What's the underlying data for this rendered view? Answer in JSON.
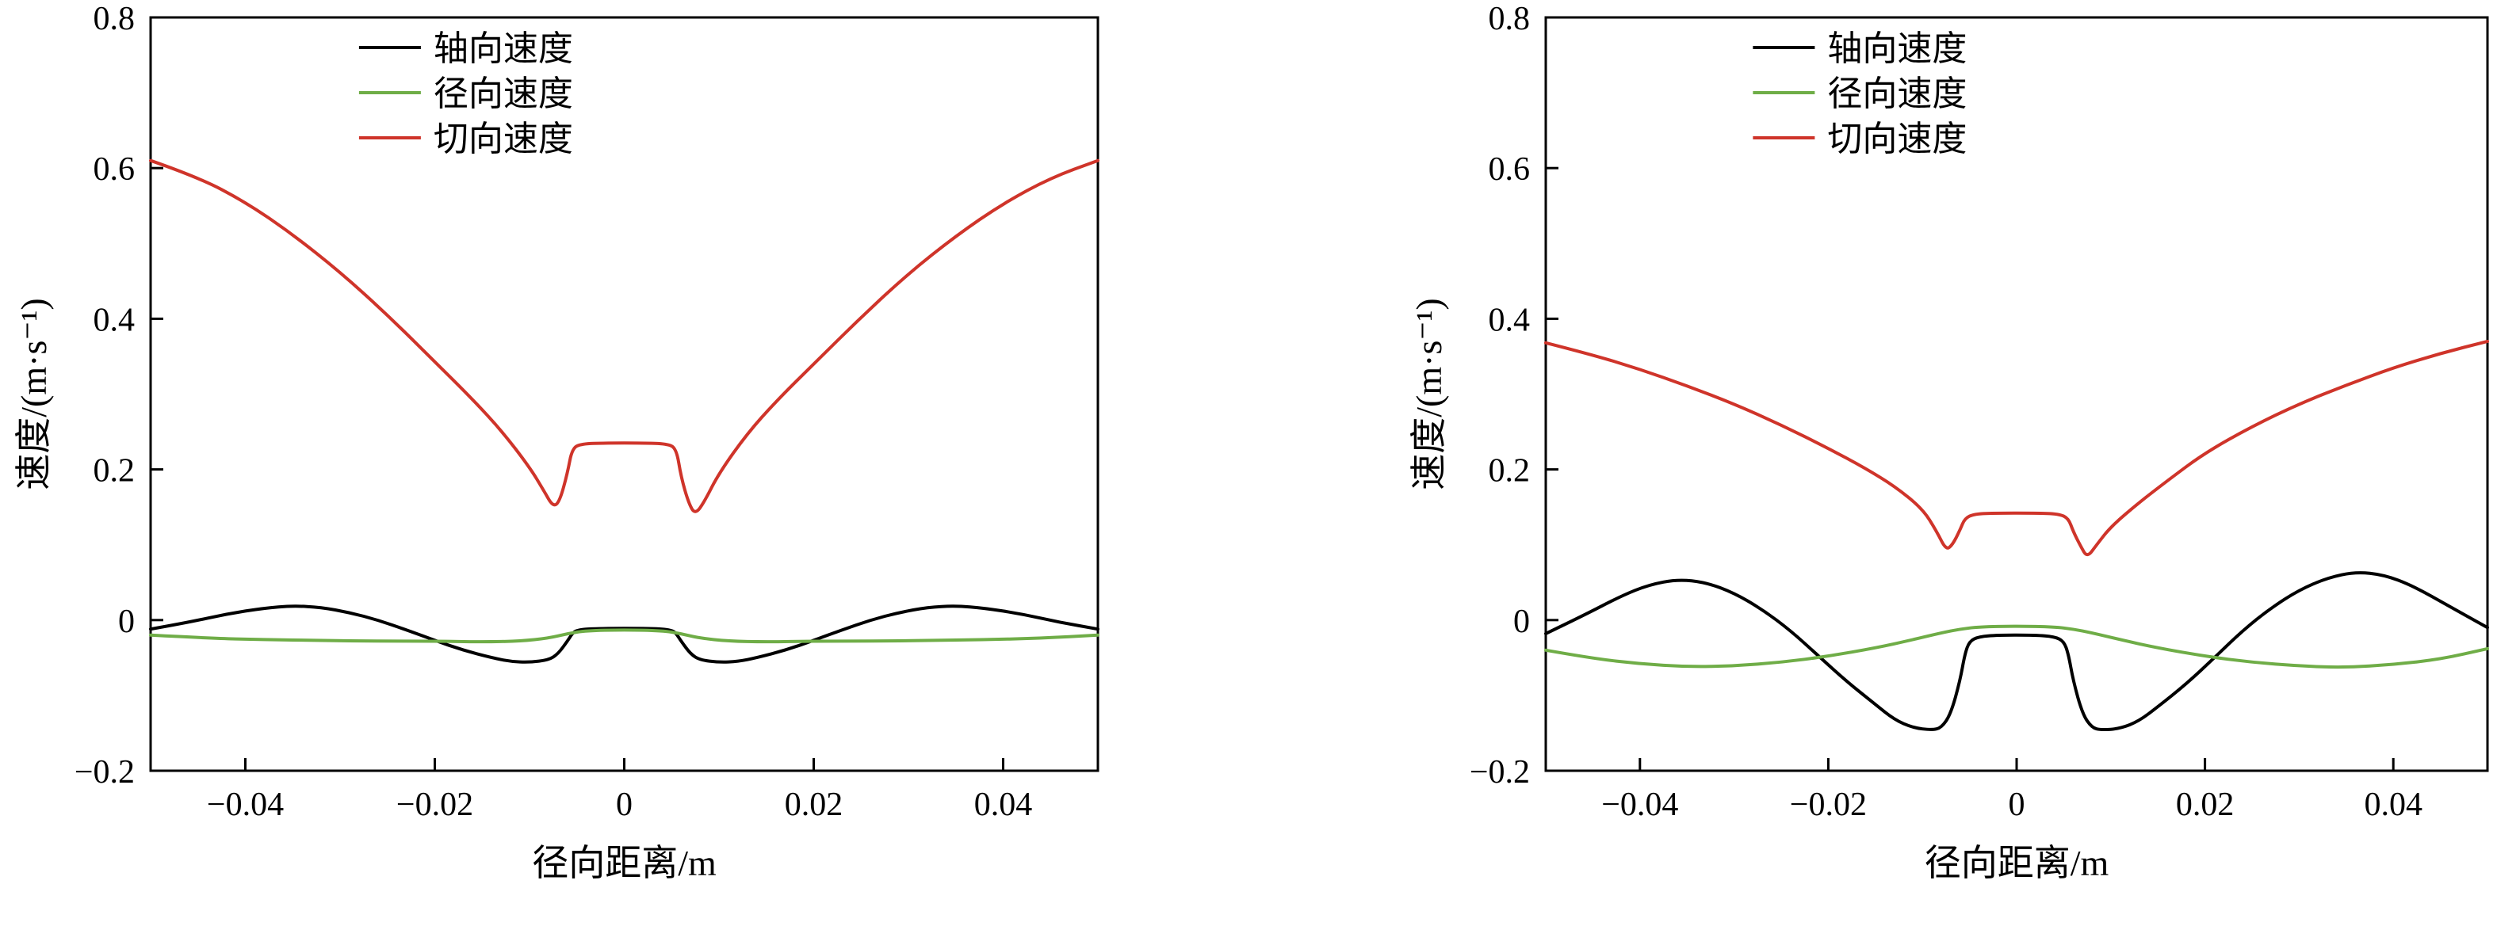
{
  "figure": {
    "background": "#ffffff"
  },
  "chart_data": [
    {
      "type": "line",
      "title": "",
      "xlabel": "径向距离/m",
      "ylabel": "速度/(m·s⁻¹)",
      "xlim": [
        -0.05,
        0.05
      ],
      "ylim": [
        -0.2,
        0.8
      ],
      "grid": false,
      "legend_position": "upper center-left",
      "xticks": {
        "values": [
          -0.04,
          -0.02,
          0,
          0.02,
          0.04
        ],
        "labels": [
          "−0.04",
          "−0.02",
          "0",
          "0.02",
          "0.04"
        ]
      },
      "yticks": {
        "values": [
          -0.2,
          0,
          0.2,
          0.4,
          0.6,
          0.8
        ],
        "labels": [
          "−0.2",
          "0",
          "0.2",
          "0.4",
          "0.6",
          "0.8"
        ]
      },
      "series": [
        {
          "id": "axial-velocity",
          "name": "轴向速度",
          "color": "#000000",
          "points": [
            [
              -0.05,
              -0.012
            ],
            [
              -0.046,
              -0.003
            ],
            [
              -0.042,
              0.008
            ],
            [
              -0.038,
              0.016
            ],
            [
              -0.035,
              0.019
            ],
            [
              -0.032,
              0.017
            ],
            [
              -0.029,
              0.01
            ],
            [
              -0.026,
              0.0
            ],
            [
              -0.023,
              -0.013
            ],
            [
              -0.02,
              -0.027
            ],
            [
              -0.017,
              -0.04
            ],
            [
              -0.014,
              -0.05
            ],
            [
              -0.012,
              -0.055
            ],
            [
              -0.01,
              -0.056
            ],
            [
              -0.008,
              -0.053
            ],
            [
              -0.007,
              -0.045
            ],
            [
              -0.006,
              -0.028
            ],
            [
              -0.0055,
              -0.018
            ],
            [
              -0.005,
              -0.013
            ],
            [
              -0.003,
              -0.011
            ],
            [
              0.003,
              -0.011
            ],
            [
              0.005,
              -0.013
            ],
            [
              0.0055,
              -0.018
            ],
            [
              0.006,
              -0.028
            ],
            [
              0.007,
              -0.045
            ],
            [
              0.008,
              -0.053
            ],
            [
              0.01,
              -0.056
            ],
            [
              0.012,
              -0.055
            ],
            [
              0.014,
              -0.05
            ],
            [
              0.017,
              -0.04
            ],
            [
              0.02,
              -0.027
            ],
            [
              0.023,
              -0.013
            ],
            [
              0.026,
              0.0
            ],
            [
              0.029,
              0.01
            ],
            [
              0.032,
              0.017
            ],
            [
              0.035,
              0.019
            ],
            [
              0.038,
              0.016
            ],
            [
              0.042,
              0.008
            ],
            [
              0.046,
              -0.003
            ],
            [
              0.05,
              -0.012
            ]
          ]
        },
        {
          "id": "radial-velocity",
          "name": "径向速度",
          "color": "#6fad47",
          "points": [
            [
              -0.05,
              -0.02
            ],
            [
              -0.044,
              -0.024
            ],
            [
              -0.038,
              -0.026
            ],
            [
              -0.032,
              -0.027
            ],
            [
              -0.026,
              -0.028
            ],
            [
              -0.02,
              -0.028
            ],
            [
              -0.015,
              -0.029
            ],
            [
              -0.011,
              -0.028
            ],
            [
              -0.008,
              -0.024
            ],
            [
              -0.006,
              -0.018
            ],
            [
              -0.004,
              -0.014
            ],
            [
              0,
              -0.013
            ],
            [
              0.004,
              -0.014
            ],
            [
              0.006,
              -0.018
            ],
            [
              0.008,
              -0.024
            ],
            [
              0.011,
              -0.028
            ],
            [
              0.015,
              -0.029
            ],
            [
              0.02,
              -0.028
            ],
            [
              0.026,
              -0.028
            ],
            [
              0.032,
              -0.027
            ],
            [
              0.038,
              -0.026
            ],
            [
              0.044,
              -0.024
            ],
            [
              0.05,
              -0.02
            ]
          ]
        },
        {
          "id": "tangential-velocity",
          "name": "切向速度",
          "color": "#cf342a",
          "points": [
            [
              -0.05,
              0.61
            ],
            [
              -0.045,
              0.588
            ],
            [
              -0.04,
              0.555
            ],
            [
              -0.035,
              0.512
            ],
            [
              -0.03,
              0.462
            ],
            [
              -0.025,
              0.405
            ],
            [
              -0.02,
              0.343
            ],
            [
              -0.016,
              0.293
            ],
            [
              -0.013,
              0.252
            ],
            [
              -0.01,
              0.203
            ],
            [
              -0.0085,
              0.172
            ],
            [
              -0.0075,
              0.15
            ],
            [
              -0.0068,
              0.158
            ],
            [
              -0.006,
              0.195
            ],
            [
              -0.0055,
              0.228
            ],
            [
              -0.0045,
              0.234
            ],
            [
              -0.002,
              0.235
            ],
            [
              0.002,
              0.235
            ],
            [
              0.0045,
              0.234
            ],
            [
              0.0055,
              0.228
            ],
            [
              0.006,
              0.19
            ],
            [
              0.0068,
              0.155
            ],
            [
              0.0075,
              0.14
            ],
            [
              0.0085,
              0.158
            ],
            [
              0.01,
              0.195
            ],
            [
              0.013,
              0.248
            ],
            [
              0.016,
              0.29
            ],
            [
              0.02,
              0.34
            ],
            [
              0.025,
              0.402
            ],
            [
              0.03,
              0.46
            ],
            [
              0.035,
              0.51
            ],
            [
              0.04,
              0.553
            ],
            [
              0.045,
              0.587
            ],
            [
              0.05,
              0.61
            ]
          ]
        }
      ]
    },
    {
      "type": "line",
      "title": "",
      "xlabel": "径向距离/m",
      "ylabel": "速度/(m·s⁻¹)",
      "xlim": [
        -0.05,
        0.05
      ],
      "ylim": [
        -0.2,
        0.8
      ],
      "grid": false,
      "legend_position": "upper center-left",
      "xticks": {
        "values": [
          -0.04,
          -0.02,
          0,
          0.02,
          0.04
        ],
        "labels": [
          "−0.04",
          "−0.02",
          "0",
          "0.02",
          "0.04"
        ]
      },
      "yticks": {
        "values": [
          -0.2,
          0,
          0.2,
          0.4,
          0.6,
          0.8
        ],
        "labels": [
          "−0.2",
          "0",
          "0.2",
          "0.4",
          "0.6",
          "0.8"
        ]
      },
      "series": [
        {
          "id": "axial-velocity",
          "name": "轴向速度",
          "color": "#000000",
          "points": [
            [
              -0.05,
              -0.018
            ],
            [
              -0.046,
              0.006
            ],
            [
              -0.042,
              0.032
            ],
            [
              -0.039,
              0.047
            ],
            [
              -0.036,
              0.054
            ],
            [
              -0.033,
              0.05
            ],
            [
              -0.03,
              0.036
            ],
            [
              -0.027,
              0.014
            ],
            [
              -0.024,
              -0.014
            ],
            [
              -0.021,
              -0.048
            ],
            [
              -0.018,
              -0.082
            ],
            [
              -0.015,
              -0.112
            ],
            [
              -0.013,
              -0.132
            ],
            [
              -0.011,
              -0.143
            ],
            [
              -0.009,
              -0.146
            ],
            [
              -0.008,
              -0.143
            ],
            [
              -0.007,
              -0.125
            ],
            [
              -0.006,
              -0.08
            ],
            [
              -0.0055,
              -0.045
            ],
            [
              -0.005,
              -0.028
            ],
            [
              -0.004,
              -0.022
            ],
            [
              -0.002,
              -0.02
            ],
            [
              0.002,
              -0.02
            ],
            [
              0.004,
              -0.022
            ],
            [
              0.005,
              -0.028
            ],
            [
              0.0055,
              -0.045
            ],
            [
              0.006,
              -0.08
            ],
            [
              0.007,
              -0.125
            ],
            [
              0.008,
              -0.143
            ],
            [
              0.009,
              -0.146
            ],
            [
              0.011,
              -0.144
            ],
            [
              0.013,
              -0.134
            ],
            [
              0.015,
              -0.115
            ],
            [
              0.018,
              -0.085
            ],
            [
              0.021,
              -0.05
            ],
            [
              0.024,
              -0.014
            ],
            [
              0.027,
              0.016
            ],
            [
              0.03,
              0.04
            ],
            [
              0.033,
              0.056
            ],
            [
              0.036,
              0.064
            ],
            [
              0.039,
              0.06
            ],
            [
              0.042,
              0.046
            ],
            [
              0.046,
              0.018
            ],
            [
              0.05,
              -0.01
            ]
          ]
        },
        {
          "id": "radial-velocity",
          "name": "径向速度",
          "color": "#6fad47",
          "points": [
            [
              -0.05,
              -0.04
            ],
            [
              -0.045,
              -0.051
            ],
            [
              -0.04,
              -0.058
            ],
            [
              -0.035,
              -0.062
            ],
            [
              -0.03,
              -0.061
            ],
            [
              -0.025,
              -0.056
            ],
            [
              -0.02,
              -0.048
            ],
            [
              -0.015,
              -0.037
            ],
            [
              -0.011,
              -0.026
            ],
            [
              -0.008,
              -0.017
            ],
            [
              -0.006,
              -0.012
            ],
            [
              -0.004,
              -0.009
            ],
            [
              0,
              -0.008
            ],
            [
              0.004,
              -0.009
            ],
            [
              0.006,
              -0.012
            ],
            [
              0.008,
              -0.017
            ],
            [
              0.011,
              -0.026
            ],
            [
              0.015,
              -0.037
            ],
            [
              0.02,
              -0.048
            ],
            [
              0.025,
              -0.056
            ],
            [
              0.03,
              -0.061
            ],
            [
              0.035,
              -0.063
            ],
            [
              0.04,
              -0.059
            ],
            [
              0.045,
              -0.052
            ],
            [
              0.05,
              -0.038
            ]
          ]
        },
        {
          "id": "tangential-velocity",
          "name": "切向速度",
          "color": "#cf342a",
          "points": [
            [
              -0.05,
              0.368
            ],
            [
              -0.045,
              0.352
            ],
            [
              -0.04,
              0.333
            ],
            [
              -0.035,
              0.311
            ],
            [
              -0.03,
              0.287
            ],
            [
              -0.025,
              0.259
            ],
            [
              -0.02,
              0.228
            ],
            [
              -0.016,
              0.201
            ],
            [
              -0.013,
              0.178
            ],
            [
              -0.01,
              0.148
            ],
            [
              -0.0085,
              0.118
            ],
            [
              -0.0075,
              0.093
            ],
            [
              -0.0068,
              0.1
            ],
            [
              -0.006,
              0.12
            ],
            [
              -0.0055,
              0.135
            ],
            [
              -0.0045,
              0.141
            ],
            [
              -0.002,
              0.142
            ],
            [
              0.002,
              0.142
            ],
            [
              0.0045,
              0.141
            ],
            [
              0.0055,
              0.135
            ],
            [
              0.006,
              0.118
            ],
            [
              0.0068,
              0.098
            ],
            [
              0.0075,
              0.083
            ],
            [
              0.0085,
              0.1
            ],
            [
              0.01,
              0.124
            ],
            [
              0.013,
              0.156
            ],
            [
              0.016,
              0.185
            ],
            [
              0.02,
              0.222
            ],
            [
              0.025,
              0.257
            ],
            [
              0.03,
              0.287
            ],
            [
              0.035,
              0.312
            ],
            [
              0.04,
              0.335
            ],
            [
              0.045,
              0.354
            ],
            [
              0.05,
              0.37
            ]
          ]
        }
      ]
    }
  ]
}
